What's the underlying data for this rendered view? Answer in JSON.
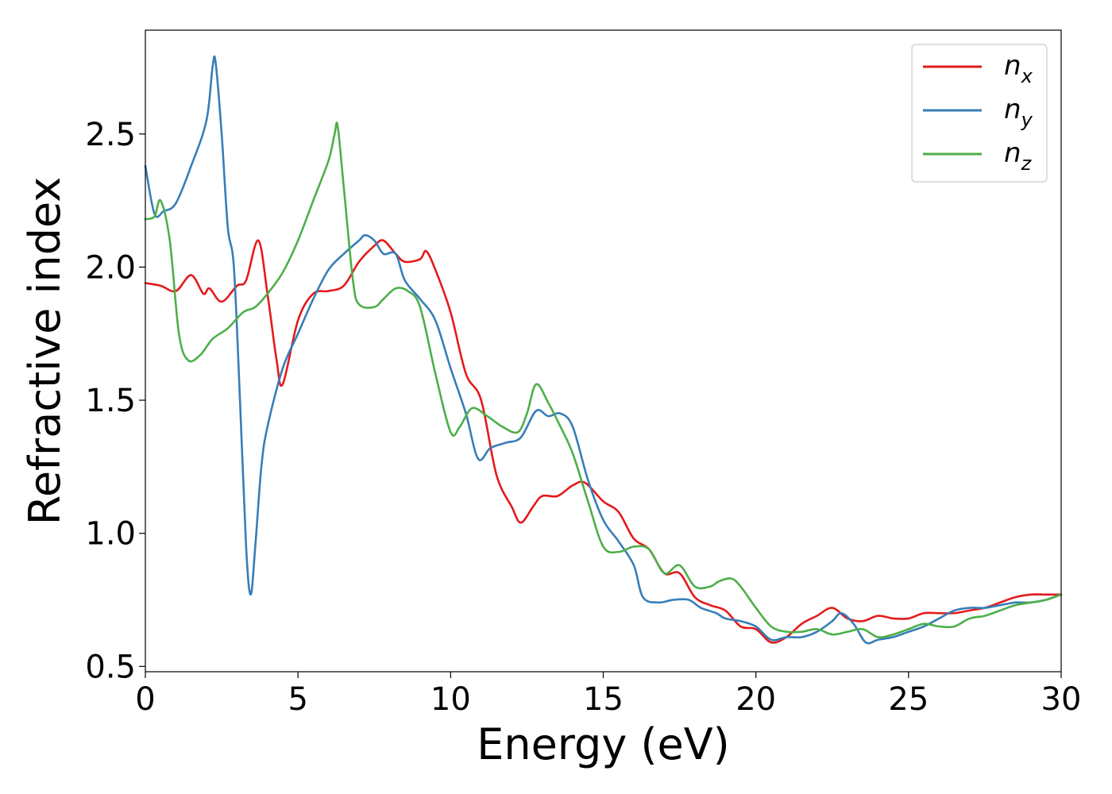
{
  "chart_data": {
    "type": "line",
    "title": "",
    "xlabel": "Energy (eV)",
    "ylabel": "Refractive index",
    "xlim": [
      0,
      30
    ],
    "ylim": [
      0.48,
      2.89
    ],
    "grid": false,
    "legend_position": "top-right",
    "x_ticks": [
      "0",
      "5",
      "10",
      "15",
      "20",
      "25",
      "30"
    ],
    "x_tick_values": [
      0,
      5,
      10,
      15,
      20,
      25,
      30
    ],
    "y_ticks": [
      "0.5",
      "1.0",
      "1.5",
      "2.0",
      "2.5"
    ],
    "y_tick_values": [
      0.5,
      1.0,
      1.5,
      2.0,
      2.5
    ],
    "series": [
      {
        "name": "n",
        "subscript": "x",
        "color": "#e41a1c",
        "points": [
          [
            0,
            1.94
          ],
          [
            0.5,
            1.93
          ],
          [
            1,
            1.91
          ],
          [
            1.5,
            1.97
          ],
          [
            1.9,
            1.9
          ],
          [
            2.1,
            1.92
          ],
          [
            2.5,
            1.87
          ],
          [
            3,
            1.93
          ],
          [
            3.3,
            1.95
          ],
          [
            3.7,
            2.1
          ],
          [
            4,
            1.9
          ],
          [
            4.3,
            1.65
          ],
          [
            4.5,
            1.56
          ],
          [
            5,
            1.8
          ],
          [
            5.5,
            1.9
          ],
          [
            6,
            1.91
          ],
          [
            6.5,
            1.93
          ],
          [
            7,
            2.02
          ],
          [
            7.5,
            2.08
          ],
          [
            7.8,
            2.1
          ],
          [
            8.2,
            2.05
          ],
          [
            8.5,
            2.02
          ],
          [
            9,
            2.03
          ],
          [
            9.2,
            2.06
          ],
          [
            9.5,
            1.99
          ],
          [
            10,
            1.83
          ],
          [
            10.5,
            1.6
          ],
          [
            11,
            1.5
          ],
          [
            11.5,
            1.22
          ],
          [
            12,
            1.1
          ],
          [
            12.3,
            1.04
          ],
          [
            12.7,
            1.1
          ],
          [
            13,
            1.14
          ],
          [
            13.5,
            1.14
          ],
          [
            14,
            1.18
          ],
          [
            14.4,
            1.19
          ],
          [
            15,
            1.12
          ],
          [
            15.5,
            1.08
          ],
          [
            16,
            0.98
          ],
          [
            16.5,
            0.94
          ],
          [
            17,
            0.85
          ],
          [
            17.5,
            0.85
          ],
          [
            18,
            0.76
          ],
          [
            18.5,
            0.73
          ],
          [
            19,
            0.71
          ],
          [
            19.5,
            0.65
          ],
          [
            20,
            0.64
          ],
          [
            20.5,
            0.59
          ],
          [
            21,
            0.61
          ],
          [
            21.5,
            0.66
          ],
          [
            22,
            0.69
          ],
          [
            22.5,
            0.72
          ],
          [
            23,
            0.68
          ],
          [
            23.5,
            0.67
          ],
          [
            24,
            0.69
          ],
          [
            24.5,
            0.68
          ],
          [
            25,
            0.68
          ],
          [
            25.5,
            0.7
          ],
          [
            26,
            0.7
          ],
          [
            26.5,
            0.7
          ],
          [
            27,
            0.71
          ],
          [
            27.5,
            0.72
          ],
          [
            28,
            0.74
          ],
          [
            28.5,
            0.76
          ],
          [
            29,
            0.77
          ],
          [
            29.5,
            0.77
          ],
          [
            30,
            0.77
          ]
        ]
      },
      {
        "name": "n",
        "subscript": "y",
        "color": "#377eb8",
        "points": [
          [
            0,
            2.38
          ],
          [
            0.3,
            2.2
          ],
          [
            0.6,
            2.21
          ],
          [
            1,
            2.24
          ],
          [
            1.5,
            2.38
          ],
          [
            2,
            2.55
          ],
          [
            2.2,
            2.75
          ],
          [
            2.3,
            2.77
          ],
          [
            2.5,
            2.5
          ],
          [
            2.7,
            2.15
          ],
          [
            2.9,
            2.0
          ],
          [
            3.1,
            1.5
          ],
          [
            3.3,
            0.95
          ],
          [
            3.45,
            0.77
          ],
          [
            3.6,
            0.95
          ],
          [
            3.8,
            1.25
          ],
          [
            4,
            1.4
          ],
          [
            4.5,
            1.62
          ],
          [
            5,
            1.75
          ],
          [
            5.5,
            1.88
          ],
          [
            6,
            1.99
          ],
          [
            6.5,
            2.05
          ],
          [
            7,
            2.1
          ],
          [
            7.2,
            2.12
          ],
          [
            7.5,
            2.1
          ],
          [
            7.8,
            2.05
          ],
          [
            8.2,
            2.05
          ],
          [
            8.5,
            1.95
          ],
          [
            9,
            1.88
          ],
          [
            9.5,
            1.8
          ],
          [
            10,
            1.62
          ],
          [
            10.5,
            1.45
          ],
          [
            10.9,
            1.28
          ],
          [
            11.3,
            1.32
          ],
          [
            11.8,
            1.34
          ],
          [
            12.3,
            1.36
          ],
          [
            12.8,
            1.46
          ],
          [
            13.2,
            1.44
          ],
          [
            13.6,
            1.45
          ],
          [
            14,
            1.4
          ],
          [
            14.5,
            1.2
          ],
          [
            15,
            1.05
          ],
          [
            15.5,
            0.97
          ],
          [
            16,
            0.88
          ],
          [
            16.3,
            0.76
          ],
          [
            16.8,
            0.74
          ],
          [
            17.3,
            0.75
          ],
          [
            17.8,
            0.75
          ],
          [
            18.2,
            0.72
          ],
          [
            18.7,
            0.7
          ],
          [
            19,
            0.68
          ],
          [
            19.5,
            0.67
          ],
          [
            20,
            0.65
          ],
          [
            20.5,
            0.6
          ],
          [
            21,
            0.61
          ],
          [
            21.5,
            0.61
          ],
          [
            22,
            0.63
          ],
          [
            22.5,
            0.67
          ],
          [
            22.8,
            0.7
          ],
          [
            23.2,
            0.66
          ],
          [
            23.6,
            0.59
          ],
          [
            24,
            0.6
          ],
          [
            24.5,
            0.61
          ],
          [
            25,
            0.63
          ],
          [
            25.5,
            0.65
          ],
          [
            26,
            0.68
          ],
          [
            26.5,
            0.71
          ],
          [
            27,
            0.72
          ],
          [
            27.5,
            0.72
          ],
          [
            28,
            0.73
          ],
          [
            28.5,
            0.74
          ],
          [
            29,
            0.74
          ],
          [
            29.5,
            0.75
          ],
          [
            30,
            0.77
          ]
        ]
      },
      {
        "name": "n",
        "subscript": "z",
        "color": "#4daf4a",
        "points": [
          [
            0,
            2.18
          ],
          [
            0.3,
            2.19
          ],
          [
            0.5,
            2.25
          ],
          [
            0.8,
            2.1
          ],
          [
            1.1,
            1.75
          ],
          [
            1.4,
            1.65
          ],
          [
            1.8,
            1.67
          ],
          [
            2.2,
            1.73
          ],
          [
            2.7,
            1.77
          ],
          [
            3.2,
            1.83
          ],
          [
            3.6,
            1.85
          ],
          [
            4,
            1.9
          ],
          [
            4.5,
            1.98
          ],
          [
            5,
            2.1
          ],
          [
            5.5,
            2.25
          ],
          [
            6,
            2.4
          ],
          [
            6.2,
            2.5
          ],
          [
            6.3,
            2.53
          ],
          [
            6.5,
            2.3
          ],
          [
            6.8,
            1.95
          ],
          [
            7,
            1.86
          ],
          [
            7.5,
            1.85
          ],
          [
            7.8,
            1.88
          ],
          [
            8.2,
            1.92
          ],
          [
            8.6,
            1.91
          ],
          [
            9,
            1.85
          ],
          [
            9.5,
            1.6
          ],
          [
            10,
            1.38
          ],
          [
            10.3,
            1.4
          ],
          [
            10.7,
            1.47
          ],
          [
            11.2,
            1.44
          ],
          [
            11.7,
            1.4
          ],
          [
            12.2,
            1.38
          ],
          [
            12.5,
            1.45
          ],
          [
            12.8,
            1.56
          ],
          [
            13.2,
            1.49
          ],
          [
            13.6,
            1.4
          ],
          [
            14,
            1.3
          ],
          [
            14.5,
            1.12
          ],
          [
            15,
            0.95
          ],
          [
            15.5,
            0.93
          ],
          [
            16,
            0.95
          ],
          [
            16.5,
            0.94
          ],
          [
            17,
            0.85
          ],
          [
            17.5,
            0.88
          ],
          [
            18,
            0.8
          ],
          [
            18.5,
            0.8
          ],
          [
            18.8,
            0.82
          ],
          [
            19.2,
            0.83
          ],
          [
            19.5,
            0.8
          ],
          [
            20,
            0.72
          ],
          [
            20.5,
            0.65
          ],
          [
            21,
            0.63
          ],
          [
            21.5,
            0.63
          ],
          [
            22,
            0.64
          ],
          [
            22.5,
            0.62
          ],
          [
            23,
            0.63
          ],
          [
            23.5,
            0.64
          ],
          [
            24,
            0.61
          ],
          [
            24.5,
            0.62
          ],
          [
            25,
            0.64
          ],
          [
            25.5,
            0.66
          ],
          [
            26,
            0.65
          ],
          [
            26.5,
            0.65
          ],
          [
            27,
            0.68
          ],
          [
            27.5,
            0.69
          ],
          [
            28,
            0.71
          ],
          [
            28.5,
            0.73
          ],
          [
            29,
            0.74
          ],
          [
            29.5,
            0.75
          ],
          [
            30,
            0.77
          ]
        ]
      }
    ]
  }
}
